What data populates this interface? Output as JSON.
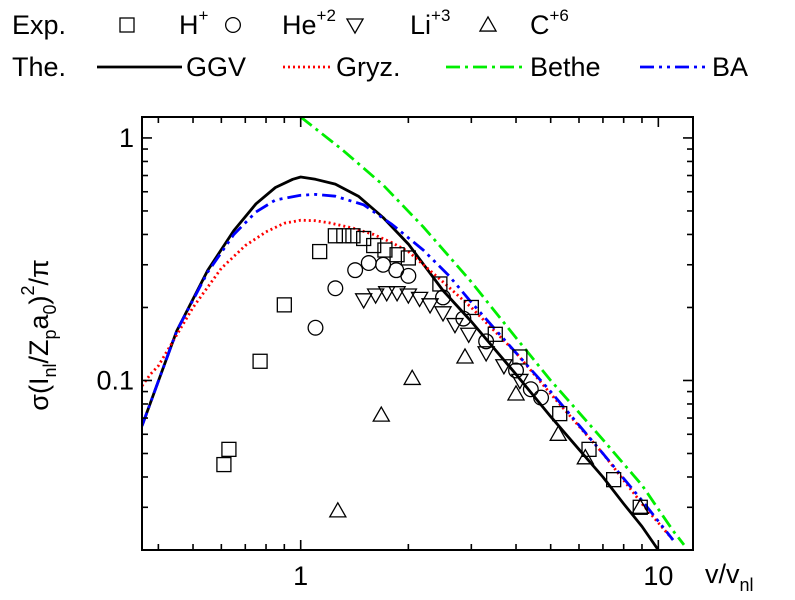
{
  "chart_data": {
    "type": "scatter",
    "xscale": "log",
    "yscale": "log",
    "xlim": [
      0.36,
      12.5
    ],
    "ylim": [
      0.02,
      1.22
    ],
    "xticks": [
      1,
      10
    ],
    "xtick_labels": [
      "1",
      "10"
    ],
    "yticks": [
      0.1,
      1
    ],
    "ytick_labels": [
      "0.1",
      "1"
    ],
    "xlabel": {
      "base": "v/v",
      "sub": "nl"
    },
    "ylabel": {
      "parts": [
        {
          "t": "σ(I",
          "k": "n"
        },
        {
          "t": "nl",
          "k": "sub"
        },
        {
          "t": "/Z",
          "k": "n"
        },
        {
          "t": "p",
          "k": "sub"
        },
        {
          "t": "a",
          "k": "n"
        },
        {
          "t": "0",
          "k": "sub"
        },
        {
          "t": ")",
          "k": "n"
        },
        {
          "t": "2",
          "k": "sup"
        },
        {
          "t": "/π",
          "k": "n"
        }
      ]
    },
    "grid": false,
    "legend": {
      "placement": "top",
      "exp_label": "Exp.",
      "theory_label": "The.",
      "exp_entries": [
        {
          "label": "H",
          "sup": "+",
          "marker": "square"
        },
        {
          "label": "He",
          "sup": "+2",
          "marker": "circle"
        },
        {
          "label": "Li",
          "sup": "+3",
          "marker": "triangle-down"
        },
        {
          "label": "C",
          "sup": "+6",
          "marker": "triangle-up"
        }
      ],
      "theory_entries": [
        {
          "label": "GGV",
          "color": "#000000",
          "dash": ""
        },
        {
          "label": "Gryz.",
          "color": "#ff0000",
          "dash": "2 3"
        },
        {
          "label": "Bethe",
          "color": "#00ee00",
          "dash": "14 5 3 5"
        },
        {
          "label": "BA",
          "color": "#0000ff",
          "dash": "14 5 3 5 3 5"
        }
      ]
    },
    "experimental_series": [
      {
        "name": "H+",
        "marker": "square",
        "x": [
          0.61,
          0.63,
          0.77,
          0.9,
          1.13,
          1.25,
          1.32,
          1.4,
          1.5,
          1.6,
          1.72,
          1.86,
          2.0,
          2.45,
          3.0,
          3.5,
          4.1,
          5.3,
          6.4,
          7.5,
          8.9
        ],
        "y": [
          0.045,
          0.052,
          0.12,
          0.205,
          0.34,
          0.395,
          0.395,
          0.395,
          0.385,
          0.36,
          0.345,
          0.33,
          0.32,
          0.25,
          0.2,
          0.155,
          0.125,
          0.073,
          0.052,
          0.039,
          0.03
        ]
      },
      {
        "name": "He+2",
        "marker": "circle",
        "x": [
          1.1,
          1.25,
          1.42,
          1.55,
          1.7,
          1.85,
          2.0,
          2.5,
          2.85,
          3.3,
          4.0,
          4.4,
          4.7
        ],
        "y": [
          0.165,
          0.24,
          0.285,
          0.305,
          0.3,
          0.285,
          0.27,
          0.22,
          0.18,
          0.145,
          0.11,
          0.092,
          0.085
        ]
      },
      {
        "name": "Li+3",
        "marker": "triangle-down",
        "x": [
          1.5,
          1.62,
          1.74,
          1.86,
          2.0,
          2.15,
          2.3,
          2.5,
          2.7,
          2.95,
          3.3,
          3.7,
          4.1
        ],
        "y": [
          0.215,
          0.225,
          0.23,
          0.23,
          0.225,
          0.218,
          0.205,
          0.19,
          0.17,
          0.155,
          0.13,
          0.115,
          0.1
        ]
      },
      {
        "name": "C+6",
        "marker": "triangle-up",
        "x": [
          1.27,
          1.68,
          2.05,
          2.88,
          4.0,
          5.25,
          6.25,
          8.9
        ],
        "y": [
          0.029,
          0.072,
          0.102,
          0.125,
          0.088,
          0.06,
          0.048,
          0.03
        ]
      }
    ],
    "theory_series": [
      {
        "name": "GGV",
        "color": "#000000",
        "dash": "",
        "x": [
          0.36,
          0.45,
          0.55,
          0.65,
          0.75,
          0.85,
          0.95,
          1.0,
          1.1,
          1.25,
          1.45,
          1.7,
          2.0,
          2.5,
          3.0,
          4.0,
          5.0,
          6.0,
          7.0,
          8.0,
          9.0,
          10.0
        ],
        "y": [
          0.065,
          0.16,
          0.285,
          0.415,
          0.535,
          0.625,
          0.675,
          0.69,
          0.675,
          0.645,
          0.575,
          0.47,
          0.365,
          0.235,
          0.175,
          0.106,
          0.071,
          0.052,
          0.04,
          0.031,
          0.025,
          0.02
        ]
      },
      {
        "name": "Gryz.",
        "color": "#ff0000",
        "dash": "2 3",
        "x": [
          0.36,
          0.38,
          0.4,
          0.5,
          0.6,
          0.7,
          0.8,
          0.9,
          1.0,
          1.1,
          1.2,
          1.4,
          1.6,
          1.8,
          2.0,
          2.5,
          3.0,
          4.0,
          5.0,
          7.0,
          9.0,
          11.0
        ],
        "y": [
          0.095,
          0.106,
          0.115,
          0.2,
          0.29,
          0.36,
          0.41,
          0.445,
          0.458,
          0.456,
          0.447,
          0.425,
          0.4,
          0.37,
          0.34,
          0.255,
          0.2,
          0.13,
          0.088,
          0.05,
          0.031,
          0.022
        ]
      },
      {
        "name": "Bethe",
        "color": "#00ee00",
        "dash": "14 5 3 5",
        "x": [
          1.0,
          1.3,
          1.7,
          2.2,
          3.0,
          4.0,
          5.0,
          7.0,
          9.0,
          11.0,
          11.8
        ],
        "y": [
          1.22,
          0.9,
          0.64,
          0.43,
          0.255,
          0.15,
          0.1,
          0.057,
          0.037,
          0.024,
          0.021
        ]
      },
      {
        "name": "BA",
        "color": "#0000ff",
        "dash": "14 5 3 5 3 5",
        "x": [
          0.36,
          0.45,
          0.55,
          0.65,
          0.75,
          0.85,
          1.0,
          1.1,
          1.25,
          1.5,
          1.8,
          2.2,
          2.6,
          3.0,
          4.0,
          5.0,
          7.0,
          9.0,
          11.0
        ],
        "y": [
          0.065,
          0.16,
          0.28,
          0.4,
          0.495,
          0.555,
          0.58,
          0.585,
          0.575,
          0.53,
          0.44,
          0.345,
          0.27,
          0.21,
          0.13,
          0.09,
          0.05,
          0.032,
          0.022
        ]
      }
    ]
  }
}
